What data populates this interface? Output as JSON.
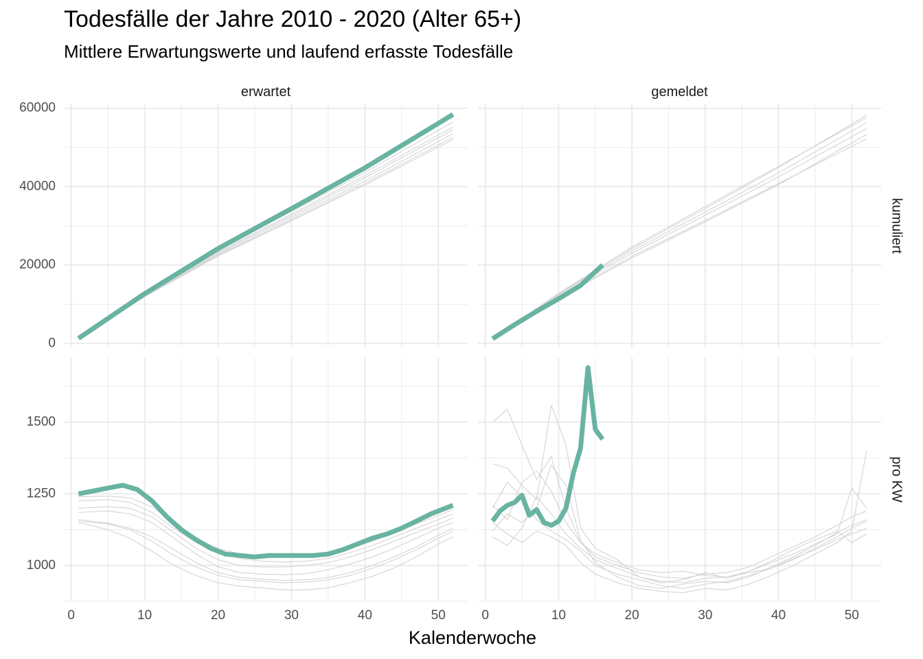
{
  "title": "Todesfälle der Jahre 2010 - 2020 (Alter 65+)",
  "subtitle": "Mittlere Erwartungswerte und laufend erfasste Todesfälle",
  "colors": {
    "highlight": "#69b3a2",
    "background_lines": "#d3d3d3",
    "grid": "#ebebeb"
  },
  "chart_data": {
    "type": "line",
    "xlabel": "Kalenderwoche",
    "x_ticks": [
      0,
      10,
      20,
      30,
      40,
      50
    ],
    "columns": [
      "erwartet",
      "gemeldet"
    ],
    "rows": [
      "kumuliert",
      "pro KW"
    ],
    "panels": [
      {
        "column": "erwartet",
        "row": "kumuliert",
        "xlim": [
          -1,
          54
        ],
        "ylim": [
          -1000,
          61000
        ],
        "y_ticks": [
          0,
          20000,
          40000,
          60000
        ],
        "highlight": {
          "x": [
            1,
            10,
            20,
            30,
            40,
            52
          ],
          "y": [
            1300,
            12700,
            24200,
            34400,
            44800,
            58400
          ]
        },
        "background_lines": [
          {
            "x": [
              1,
              10,
              20,
              30,
              40,
              52
            ],
            "y": [
              1250,
              12300,
              23100,
              32600,
              42200,
              54500
            ]
          },
          {
            "x": [
              1,
              10,
              20,
              30,
              40,
              52
            ],
            "y": [
              1200,
              12000,
              22500,
              31600,
              40800,
              52600
            ]
          },
          {
            "x": [
              1,
              10,
              20,
              30,
              40,
              52
            ],
            "y": [
              1250,
              12100,
              22800,
              32100,
              41400,
              53500
            ]
          },
          {
            "x": [
              1,
              10,
              20,
              30,
              40,
              52
            ],
            "y": [
              1280,
              12400,
              23400,
              33000,
              42800,
              55200
            ]
          },
          {
            "x": [
              1,
              10,
              20,
              30,
              40,
              52
            ],
            "y": [
              1300,
              12600,
              23800,
              33700,
              43600,
              56500
            ]
          },
          {
            "x": [
              1,
              10,
              20,
              30,
              40,
              52
            ],
            "y": [
              1200,
              11900,
              22300,
              31300,
              40400,
              52000
            ]
          }
        ]
      },
      {
        "column": "gemeldet",
        "row": "kumuliert",
        "xlim": [
          -1,
          54
        ],
        "ylim": [
          -1000,
          61000
        ],
        "y_ticks": [
          0,
          20000,
          40000,
          60000
        ],
        "highlight": {
          "x": [
            1,
            4,
            7,
            10,
            13,
            16
          ],
          "y": [
            1200,
            4800,
            8200,
            11400,
            14800,
            20000
          ]
        },
        "background_lines": [
          {
            "x": [
              1,
              10,
              20,
              30,
              40,
              52
            ],
            "y": [
              1300,
              12600,
              24200,
              34400,
              44900,
              58200
            ]
          },
          {
            "x": [
              1,
              10,
              20,
              30,
              40,
              52
            ],
            "y": [
              1200,
              11800,
              22200,
              31400,
              40800,
              52200
            ]
          },
          {
            "x": [
              1,
              10,
              20,
              30,
              40,
              52
            ],
            "y": [
              1250,
              12200,
              23000,
              32700,
              42500,
              54800
            ]
          },
          {
            "x": [
              1,
              10,
              20,
              30,
              40,
              52
            ],
            "y": [
              1280,
              12500,
              23600,
              33500,
              43500,
              56300
            ]
          },
          {
            "x": [
              1,
              10,
              20,
              30,
              40,
              52
            ],
            "y": [
              1250,
              12800,
              24600,
              34900,
              45200,
              57600
            ]
          },
          {
            "x": [
              1,
              10,
              20,
              30,
              40,
              52
            ],
            "y": [
              1150,
              11500,
              21800,
              31000,
              40500,
              53300
            ]
          }
        ]
      },
      {
        "column": "erwartet",
        "row": "pro KW",
        "xlim": [
          -1,
          54
        ],
        "ylim": [
          875,
          1725
        ],
        "y_ticks": [
          1000,
          1250,
          1500
        ],
        "highlight": {
          "x": [
            1,
            3,
            5,
            7,
            9,
            11,
            13,
            15,
            17,
            19,
            21,
            23,
            25,
            27,
            29,
            31,
            33,
            35,
            37,
            39,
            41,
            43,
            45,
            47,
            49,
            52
          ],
          "y": [
            1250,
            1260,
            1270,
            1280,
            1265,
            1225,
            1170,
            1125,
            1090,
            1060,
            1040,
            1035,
            1030,
            1035,
            1035,
            1035,
            1035,
            1040,
            1055,
            1075,
            1095,
            1110,
            1130,
            1155,
            1180,
            1210
          ]
        },
        "background_lines": [
          {
            "x": [
              1,
              5,
              8,
              11,
              14,
              17,
              20,
              23,
              26,
              29,
              32,
              35,
              38,
              41,
              44,
              47,
              50,
              52
            ],
            "y": [
              1240,
              1242,
              1236,
              1205,
              1150,
              1095,
              1060,
              1040,
              1030,
              1030,
              1035,
              1040,
              1060,
              1085,
              1115,
              1145,
              1175,
              1195
            ]
          },
          {
            "x": [
              1,
              5,
              8,
              11,
              14,
              17,
              20,
              23,
              26,
              29,
              32,
              35,
              38,
              41,
              44,
              47,
              50,
              52
            ],
            "y": [
              1225,
              1230,
              1220,
              1185,
              1130,
              1080,
              1045,
              1025,
              1015,
              1012,
              1015,
              1025,
              1045,
              1070,
              1100,
              1130,
              1160,
              1180
            ]
          },
          {
            "x": [
              1,
              5,
              8,
              11,
              14,
              17,
              20,
              23,
              26,
              29,
              32,
              35,
              38,
              41,
              44,
              47,
              50,
              52
            ],
            "y": [
              1200,
              1205,
              1200,
              1170,
              1115,
              1060,
              1020,
              1000,
              995,
              995,
              1000,
              1010,
              1030,
              1055,
              1085,
              1115,
              1145,
              1165
            ]
          },
          {
            "x": [
              1,
              5,
              8,
              11,
              14,
              17,
              20,
              23,
              26,
              29,
              32,
              35,
              38,
              41,
              44,
              47,
              50,
              52
            ],
            "y": [
              1185,
              1190,
              1180,
              1150,
              1095,
              1040,
              995,
              975,
              970,
              968,
              972,
              985,
              1005,
              1030,
              1060,
              1095,
              1130,
              1150
            ]
          },
          {
            "x": [
              1,
              5,
              8,
              11,
              14,
              17,
              20,
              23,
              26,
              29,
              32,
              35,
              38,
              41,
              44,
              47,
              50,
              52
            ],
            "y": [
              1155,
              1145,
              1125,
              1085,
              1035,
              995,
              965,
              950,
              945,
              940,
              942,
              950,
              965,
              990,
              1020,
              1055,
              1095,
              1120
            ]
          },
          {
            "x": [
              1,
              5,
              8,
              11,
              14,
              17,
              20,
              23,
              26,
              29,
              32,
              35,
              38,
              41,
              44,
              47,
              50,
              52
            ],
            "y": [
              1150,
              1125,
              1095,
              1050,
              1000,
              965,
              940,
              928,
              922,
              915,
              915,
              922,
              940,
              962,
              992,
              1030,
              1075,
              1100
            ]
          },
          {
            "x": [
              1,
              5,
              8,
              11,
              14,
              17,
              20,
              23,
              26,
              29,
              32,
              35,
              38,
              41,
              44,
              47,
              50,
              52
            ],
            "y": [
              1160,
              1148,
              1130,
              1100,
              1055,
              1010,
              975,
              958,
              952,
              948,
              950,
              958,
              975,
              1000,
              1030,
              1065,
              1105,
              1130
            ]
          }
        ]
      },
      {
        "column": "gemeldet",
        "row": "pro KW",
        "xlim": [
          -1,
          54
        ],
        "ylim": [
          875,
          1725
        ],
        "y_ticks": [
          1000,
          1250,
          1500
        ],
        "highlight": {
          "x": [
            1,
            2,
            3,
            4,
            5,
            6,
            7,
            8,
            9,
            10,
            11,
            12,
            13,
            14,
            15,
            16
          ],
          "y": [
            1155,
            1190,
            1210,
            1220,
            1245,
            1175,
            1195,
            1150,
            1140,
            1155,
            1200,
            1320,
            1410,
            1690,
            1475,
            1440
          ]
        },
        "background_lines": [
          {
            "x": [
              1,
              3,
              5,
              7,
              9,
              11,
              13,
              15,
              18,
              21,
              24,
              27,
              30,
              33,
              36,
              39,
              42,
              45,
              48,
              50,
              52
            ],
            "y": [
              1500,
              1545,
              1420,
              1300,
              1380,
              1200,
              1080,
              1040,
              1010,
              985,
              975,
              980,
              965,
              960,
              975,
              990,
              1020,
              1060,
              1100,
              1130,
              1155
            ]
          },
          {
            "x": [
              1,
              3,
              5,
              7,
              9,
              11,
              13,
              15,
              18,
              21,
              24,
              27,
              30,
              33,
              36,
              39,
              42,
              45,
              48,
              50,
              52
            ],
            "y": [
              1355,
              1340,
              1280,
              1230,
              1560,
              1420,
              1130,
              1060,
              1020,
              960,
              940,
              950,
              975,
              955,
              980,
              1010,
              1040,
              1075,
              1110,
              1270,
              1200
            ]
          },
          {
            "x": [
              1,
              3,
              5,
              7,
              9,
              11,
              13,
              15,
              18,
              21,
              24,
              27,
              30,
              33,
              36,
              39,
              42,
              45,
              48,
              50,
              52
            ],
            "y": [
              1120,
              1180,
              1150,
              1200,
              1350,
              1280,
              1090,
              1010,
              960,
              930,
              920,
              935,
              945,
              940,
              960,
              995,
              1030,
              1070,
              1115,
              1140,
              1160
            ]
          },
          {
            "x": [
              1,
              3,
              5,
              7,
              9,
              11,
              13,
              15,
              18,
              21,
              24,
              27,
              30,
              33,
              36,
              39,
              42,
              45,
              48,
              50,
              52
            ],
            "y": [
              1200,
              1290,
              1240,
              1160,
              1120,
              1090,
              1050,
              1000,
              970,
              950,
              930,
              920,
              935,
              945,
              965,
              990,
              1025,
              1055,
              1090,
              1110,
              1130
            ]
          },
          {
            "x": [
              1,
              3,
              5,
              7,
              9,
              11,
              13,
              15,
              18,
              21,
              24,
              27,
              30,
              33,
              36,
              39,
              42,
              45,
              48,
              50,
              52
            ],
            "y": [
              1100,
              1070,
              1130,
              1240,
              1180,
              1110,
              1060,
              1020,
              990,
              960,
              945,
              940,
              955,
              960,
              980,
              1015,
              1055,
              1090,
              1120,
              1080,
              1110
            ]
          },
          {
            "x": [
              1,
              3,
              5,
              7,
              9,
              11,
              13,
              15,
              18,
              21,
              24,
              27,
              30,
              33,
              36,
              39,
              42,
              45,
              48,
              50,
              52
            ],
            "y": [
              1150,
              1110,
              1080,
              1120,
              1100,
              1070,
              1010,
              970,
              940,
              920,
              910,
              905,
              920,
              915,
              935,
              965,
              1000,
              1040,
              1080,
              1120,
              1400
            ]
          },
          {
            "x": [
              1,
              3,
              5,
              7,
              9,
              11,
              13,
              15,
              18,
              21,
              24,
              27,
              30,
              33,
              36,
              39,
              42,
              45,
              48,
              50,
              52
            ],
            "y": [
              1210,
              1160,
              1290,
              1330,
              1260,
              1150,
              1080,
              1030,
              1000,
              975,
              960,
              955,
              970,
              975,
              995,
              1030,
              1065,
              1100,
              1140,
              1170,
              1190
            ]
          }
        ]
      }
    ]
  }
}
